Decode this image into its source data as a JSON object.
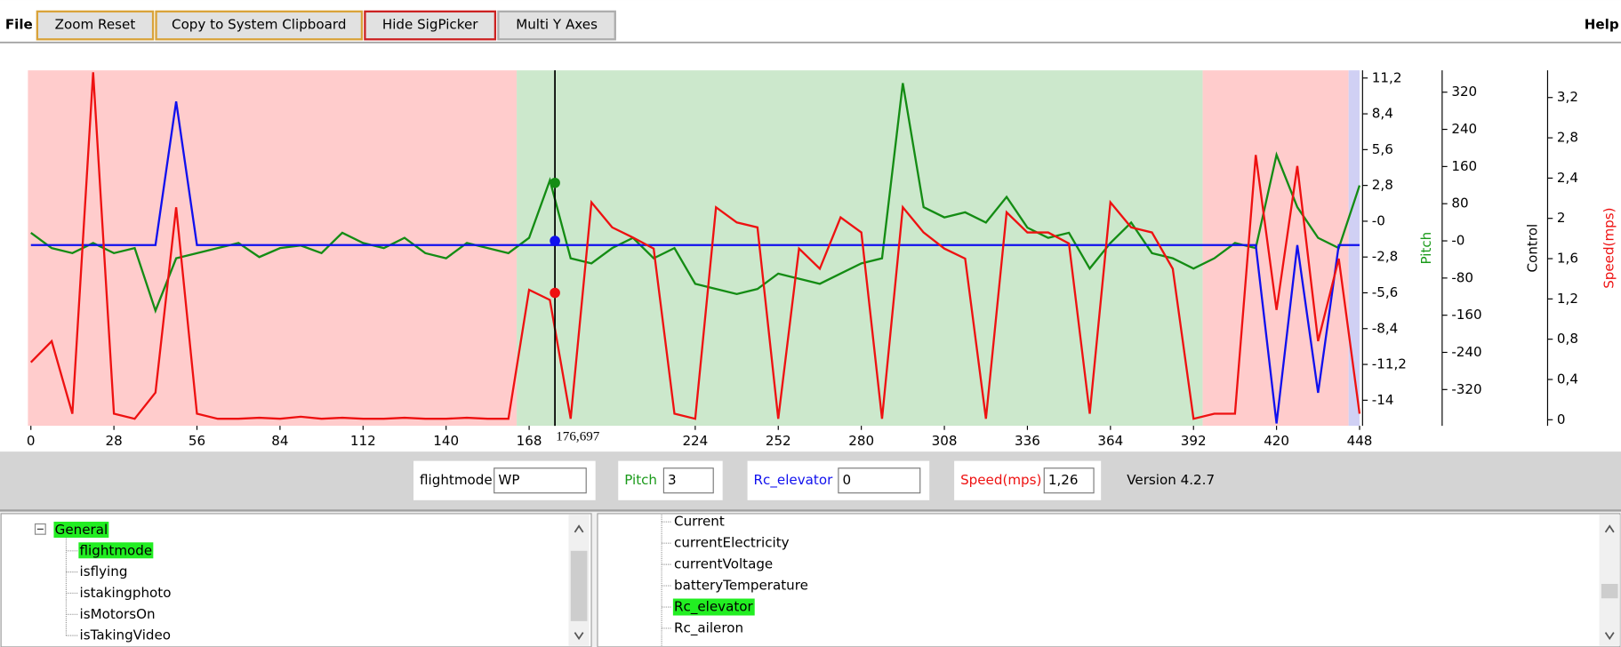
{
  "menu": {
    "file": "File",
    "help": "Help"
  },
  "toolbar": {
    "buttons": [
      {
        "label": "Zoom Reset",
        "border": "#d9a33a"
      },
      {
        "label": "Copy to System Clipboard",
        "border": "#d9a33a"
      },
      {
        "label": "Hide SigPicker",
        "border": "#cc2222"
      },
      {
        "label": "Multi Y Axes",
        "border": "#adadad"
      }
    ]
  },
  "chart_data": {
    "type": "line",
    "x": [
      0,
      7,
      14,
      21,
      28,
      35,
      42,
      49,
      56,
      63,
      70,
      77,
      84,
      91,
      98,
      105,
      112,
      119,
      126,
      133,
      140,
      147,
      154,
      161,
      168,
      175,
      182,
      189,
      196,
      203,
      210,
      217,
      224,
      231,
      238,
      245,
      252,
      259,
      266,
      273,
      280,
      287,
      294,
      301,
      308,
      315,
      322,
      329,
      336,
      343,
      350,
      357,
      364,
      371,
      378,
      385,
      392,
      399,
      406,
      413,
      420,
      427,
      434,
      441,
      448
    ],
    "xlim": [
      -1,
      449
    ],
    "xticks": [
      0,
      28,
      56,
      84,
      112,
      140,
      168,
      224,
      252,
      280,
      308,
      336,
      364,
      392,
      420,
      448
    ],
    "regions": [
      {
        "start": -1,
        "end": 163.8,
        "color": "#ffcccc"
      },
      {
        "start": 163.8,
        "end": 395.1,
        "color": "#cce8cc"
      },
      {
        "start": 395.1,
        "end": 444.3,
        "color": "#ffcccc"
      },
      {
        "start": 444.3,
        "end": 448,
        "color": "#d0d0f4"
      }
    ],
    "cursor": {
      "value": 176.697,
      "label": "176,697"
    },
    "axes": [
      {
        "title": "Pitch",
        "color": "#1a9a1a",
        "ylim": [
          -16.0,
          11.8
        ],
        "yticks": [
          {
            "value": 11.2,
            "label": "11,2"
          },
          {
            "value": 8.4,
            "label": "8,4"
          },
          {
            "value": 5.6,
            "label": "5,6"
          },
          {
            "value": 2.8,
            "label": "2,8"
          },
          {
            "value": 0,
            "label": "-0"
          },
          {
            "value": -2.8,
            "label": "-2,8"
          },
          {
            "value": -5.6,
            "label": "-5,6"
          },
          {
            "value": -8.4,
            "label": "-8,4"
          },
          {
            "value": -11.2,
            "label": "-11,2"
          },
          -14
        ]
      },
      {
        "title": "Control",
        "color": "#000000",
        "ylim": [
          -398,
          367
        ],
        "yticks": [
          320,
          240,
          160,
          80,
          {
            "value": 0,
            "label": "-0"
          },
          -80,
          -160,
          -240,
          -320
        ]
      },
      {
        "title": "Speed(mps)",
        "color": "#ee1111",
        "ylim": [
          -0.06,
          3.47
        ],
        "yticks": [
          {
            "value": 3.2,
            "label": "3,2"
          },
          {
            "value": 2.8,
            "label": "2,8"
          },
          {
            "value": 2.4,
            "label": "2,4"
          },
          2,
          {
            "value": 1.6,
            "label": "1,6"
          },
          {
            "value": 1.2,
            "label": "1,2"
          },
          {
            "value": 0.8,
            "label": "0,8"
          },
          {
            "value": 0.4,
            "label": "0,4"
          },
          0
        ]
      }
    ],
    "series": [
      {
        "name": "Pitch",
        "color": "#148c14",
        "axis": 0,
        "values": [
          -0.9,
          -2.1,
          -2.5,
          -1.7,
          -2.5,
          -2.1,
          -7.0,
          -2.9,
          -2.5,
          -2.1,
          -1.7,
          -2.8,
          -2.1,
          -1.9,
          -2.5,
          -0.9,
          -1.7,
          -2.1,
          -1.3,
          -2.5,
          -2.9,
          -1.7,
          -2.1,
          -2.5,
          -1.3,
          3.2,
          -2.9,
          -3.3,
          -2.1,
          -1.3,
          -2.9,
          -2.1,
          -4.9,
          -5.3,
          -5.7,
          -5.3,
          -4.1,
          -4.5,
          -4.9,
          -4.1,
          -3.3,
          -2.9,
          10.8,
          1.1,
          0.3,
          0.7,
          -0.1,
          1.9,
          -0.5,
          -1.3,
          -0.9,
          -3.7,
          -1.7,
          -0.1,
          -2.5,
          -2.9,
          -3.7,
          -2.9,
          -1.7,
          -2.1,
          5.2,
          1.1,
          -1.3,
          -2.1,
          2.8
        ]
      },
      {
        "name": "Rc_elevator",
        "color": "#1010ee",
        "axis": 1,
        "values": [
          -9,
          -9,
          -9,
          -9,
          -9,
          -9,
          -9,
          300,
          -9,
          -9,
          -9,
          -9,
          -9,
          -9,
          -9,
          -9,
          -9,
          -9,
          -9,
          -9,
          -9,
          -9,
          -9,
          -9,
          -9,
          -9,
          -9,
          -9,
          -9,
          -9,
          -9,
          -9,
          -9,
          -9,
          -9,
          -9,
          -9,
          -9,
          -9,
          -9,
          -9,
          -9,
          -9,
          -9,
          -9,
          -9,
          -9,
          -9,
          -9,
          -9,
          -9,
          -9,
          -9,
          -9,
          -9,
          -9,
          -9,
          -9,
          -9,
          -9,
          -393,
          -9,
          -327,
          -9,
          -9
        ]
      },
      {
        "name": "Speed(mps)",
        "color": "#ee1111",
        "axis": 2,
        "values": [
          0.57,
          0.78,
          0.06,
          3.45,
          0.06,
          0.01,
          0.27,
          2.11,
          0.06,
          0.01,
          0.01,
          0.02,
          0.01,
          0.03,
          0.01,
          0.02,
          0.01,
          0.01,
          0.02,
          0.01,
          0.01,
          0.02,
          0.01,
          0.01,
          1.29,
          1.19,
          0.01,
          2.16,
          1.91,
          1.81,
          1.7,
          0.06,
          0.01,
          2.11,
          1.96,
          1.91,
          0.01,
          1.7,
          1.5,
          2.01,
          1.86,
          0.01,
          2.11,
          1.86,
          1.7,
          1.6,
          0.01,
          2.06,
          1.86,
          1.86,
          1.75,
          0.06,
          2.16,
          1.91,
          1.86,
          1.5,
          0.01,
          0.06,
          0.06,
          2.63,
          1.09,
          2.52,
          0.78,
          1.6,
          0.06
        ]
      }
    ]
  },
  "signals": [
    {
      "name": "flightmode",
      "color": "#000000",
      "value": "WP"
    },
    {
      "name": "Pitch",
      "color": "#1a9a1a",
      "value": 3
    },
    {
      "name": "Rc_elevator",
      "color": "#1010ee",
      "value": 0
    },
    {
      "name": "Speed(mps)",
      "color": "#ee1111",
      "value": {
        "value": 1.26,
        "label": "1,26"
      }
    }
  ],
  "version": "Version 4.2.7",
  "tree": {
    "group": "General",
    "items": [
      {
        "label": "flightmode",
        "selected": true
      },
      {
        "label": "isflying",
        "selected": false
      },
      {
        "label": "istakingphoto",
        "selected": false
      },
      {
        "label": "isMotorsOn",
        "selected": false
      },
      {
        "label": "isTakingVideo",
        "selected": false
      }
    ]
  },
  "list": [
    {
      "label": "Current",
      "selected": false
    },
    {
      "label": "currentElectricity",
      "selected": false
    },
    {
      "label": "currentVoltage",
      "selected": false
    },
    {
      "label": "batteryTemperature",
      "selected": false
    },
    {
      "label": "Rc_elevator",
      "selected": true
    },
    {
      "label": "Rc_aileron",
      "selected": false
    }
  ]
}
